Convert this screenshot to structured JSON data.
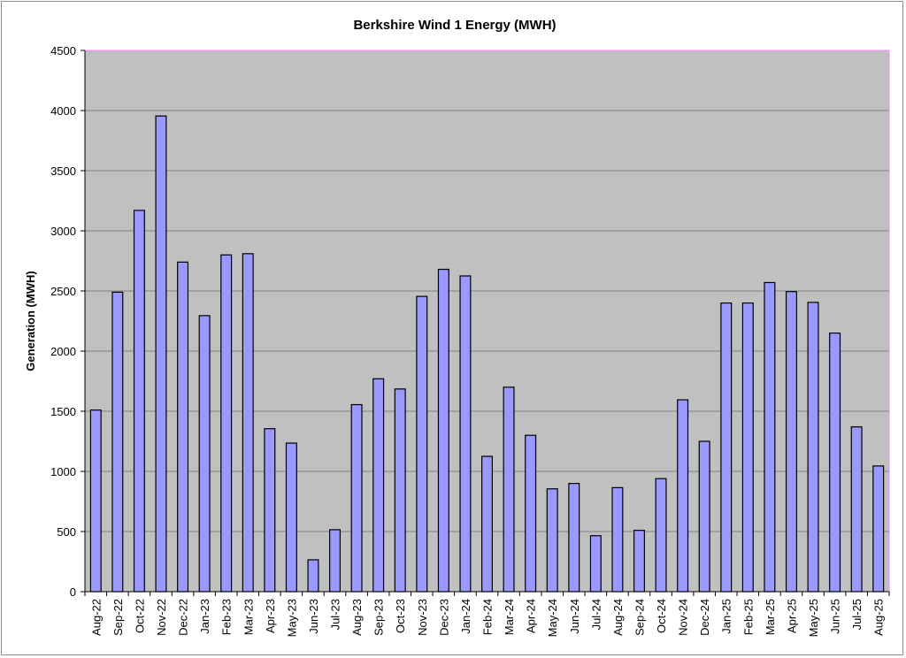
{
  "chart_data": {
    "type": "bar",
    "title": "Berkshire Wind 1 Energy (MWH)",
    "xlabel": "",
    "ylabel": "Generation (MWH)",
    "ylim": [
      0,
      4500
    ],
    "ytick_step": 500,
    "grid": true,
    "legend": "none",
    "colors": {
      "plot_background": "#c0c0c0",
      "bar_fill": "#9999ff",
      "bar_stroke": "#000000",
      "gridline": "#808080",
      "plot_border_top_right": "#ff80ff"
    },
    "categories": [
      "Aug-22",
      "Sep-22",
      "Oct-22",
      "Nov-22",
      "Dec-22",
      "Jan-23",
      "Feb-23",
      "Mar-23",
      "Apr-23",
      "May-23",
      "Jun-23",
      "Jul-23",
      "Aug-23",
      "Sep-23",
      "Oct-23",
      "Nov-23",
      "Dec-23",
      "Jan-24",
      "Feb-24",
      "Mar-24",
      "Apr-24",
      "May-24",
      "Jun-24",
      "Jul-24",
      "Aug-24",
      "Sep-24",
      "Oct-24",
      "Nov-24",
      "Dec-24",
      "Jan-25",
      "Feb-25",
      "Mar-25",
      "Apr-25",
      "May-25",
      "Jun-25",
      "Jul-25",
      "Aug-25"
    ],
    "values": [
      1510,
      2490,
      3170,
      3955,
      2740,
      2295,
      2800,
      2810,
      1355,
      1235,
      265,
      515,
      1555,
      1770,
      1685,
      2455,
      2680,
      2625,
      1125,
      1700,
      1300,
      855,
      900,
      465,
      865,
      510,
      940,
      1595,
      1250,
      2400,
      2400,
      2570,
      2495,
      2405,
      2150,
      1370,
      1045
    ]
  }
}
